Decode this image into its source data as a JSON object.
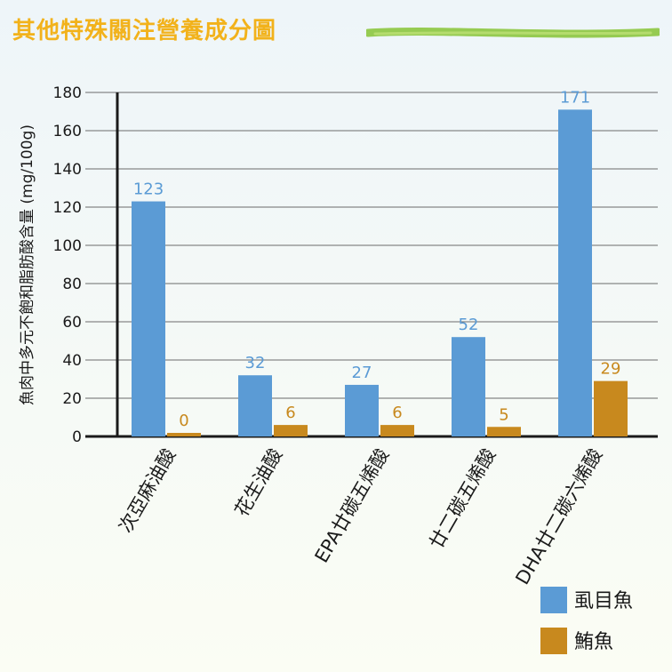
{
  "chart_data": {
    "type": "bar",
    "title": "其他特殊關注營養成分圖",
    "ylabel": "魚肉中多元不飽和脂肪酸含量 (mg/100g)",
    "xlabel": "",
    "ylim": [
      0,
      180
    ],
    "yticks": [
      0,
      20,
      40,
      60,
      80,
      100,
      120,
      140,
      160,
      180
    ],
    "grid": true,
    "legend_position": "bottom-right",
    "categories": [
      "次亞麻油酸",
      "花生油酸",
      "EPA廿碳五烯酸",
      "廿二碳五烯酸",
      "DHA廿二碳六烯酸"
    ],
    "series": [
      {
        "name": "虱目魚",
        "color": "#5b9bd5",
        "values": [
          123,
          32,
          27,
          52,
          171
        ]
      },
      {
        "name": "鮪魚",
        "color": "#c8891e",
        "values": [
          0,
          6,
          6,
          5,
          29
        ]
      }
    ]
  }
}
